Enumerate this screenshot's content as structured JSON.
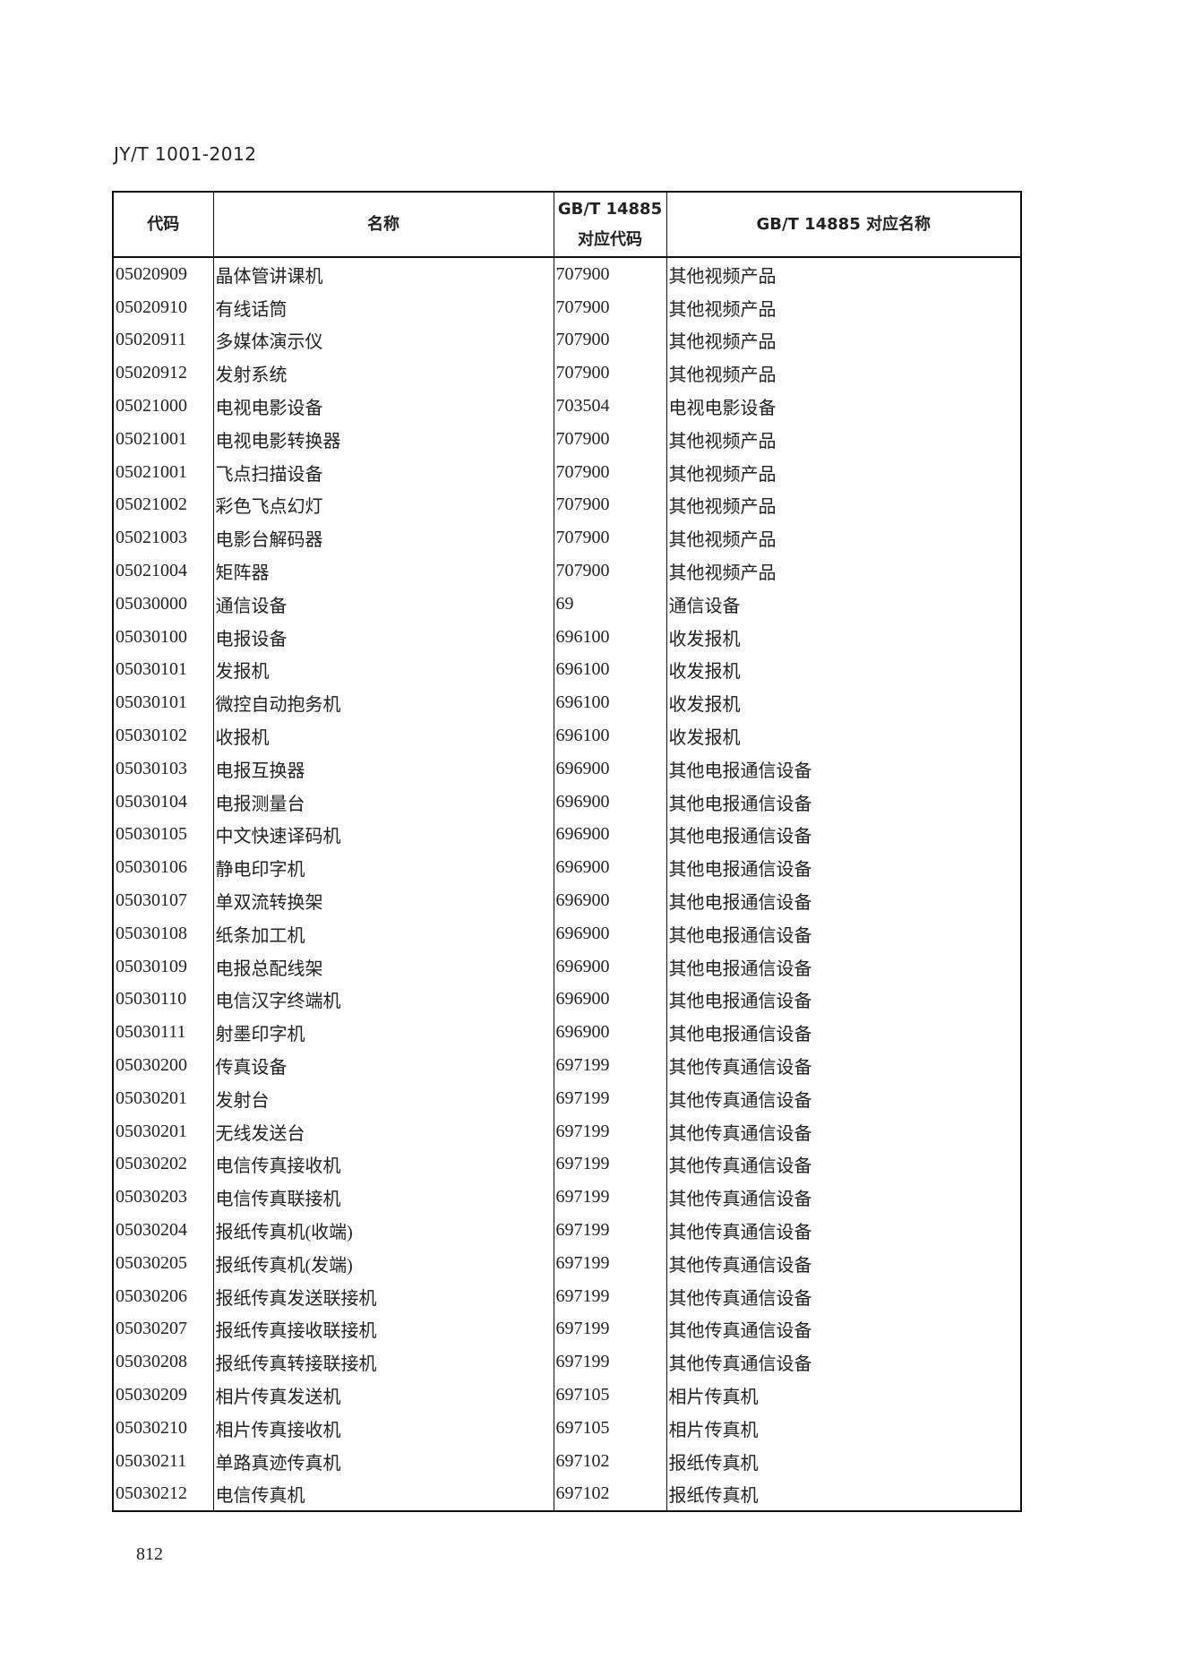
{
  "header": {
    "doc_id": "JY/T 1001-2012"
  },
  "table": {
    "columns": [
      "代码",
      "名称",
      "GB/T 14885\n对应代码",
      "GB/T 14885 对应名称"
    ],
    "column_lines": {
      "c3_line1": "GB/T 14885",
      "c3_line2": "对应代码"
    },
    "rows": [
      [
        "05020909",
        "晶体管讲课机",
        "707900",
        "其他视频产品"
      ],
      [
        "05020910",
        "有线话筒",
        "707900",
        "其他视频产品"
      ],
      [
        "05020911",
        "多媒体演示仪",
        "707900",
        "其他视频产品"
      ],
      [
        "05020912",
        "发射系统",
        "707900",
        "其他视频产品"
      ],
      [
        "05021000",
        "电视电影设备",
        "703504",
        "电视电影设备"
      ],
      [
        "05021001",
        "电视电影转换器",
        "707900",
        "其他视频产品"
      ],
      [
        "05021001",
        "飞点扫描设备",
        "707900",
        "其他视频产品"
      ],
      [
        "05021002",
        "彩色飞点幻灯",
        "707900",
        "其他视频产品"
      ],
      [
        "05021003",
        "电影台解码器",
        "707900",
        "其他视频产品"
      ],
      [
        "05021004",
        "矩阵器",
        "707900",
        "其他视频产品"
      ],
      [
        "05030000",
        "通信设备",
        "69",
        "通信设备"
      ],
      [
        "05030100",
        "电报设备",
        "696100",
        "收发报机"
      ],
      [
        "05030101",
        "发报机",
        "696100",
        "收发报机"
      ],
      [
        "05030101",
        "微控自动抱务机",
        "696100",
        "收发报机"
      ],
      [
        "05030102",
        "收报机",
        "696100",
        "收发报机"
      ],
      [
        "05030103",
        "电报互换器",
        "696900",
        "其他电报通信设备"
      ],
      [
        "05030104",
        "电报测量台",
        "696900",
        "其他电报通信设备"
      ],
      [
        "05030105",
        "中文快速译码机",
        "696900",
        "其他电报通信设备"
      ],
      [
        "05030106",
        "静电印字机",
        "696900",
        "其他电报通信设备"
      ],
      [
        "05030107",
        "单双流转换架",
        "696900",
        "其他电报通信设备"
      ],
      [
        "05030108",
        "纸条加工机",
        "696900",
        "其他电报通信设备"
      ],
      [
        "05030109",
        "电报总配线架",
        "696900",
        "其他电报通信设备"
      ],
      [
        "05030110",
        "电信汉字终端机",
        "696900",
        "其他电报通信设备"
      ],
      [
        "05030111",
        "射墨印字机",
        "696900",
        "其他电报通信设备"
      ],
      [
        "05030200",
        "传真设备",
        "697199",
        "其他传真通信设备"
      ],
      [
        "05030201",
        "发射台",
        "697199",
        "其他传真通信设备"
      ],
      [
        "05030201",
        "无线发送台",
        "697199",
        "其他传真通信设备"
      ],
      [
        "05030202",
        "电信传真接收机",
        "697199",
        "其他传真通信设备"
      ],
      [
        "05030203",
        "电信传真联接机",
        "697199",
        "其他传真通信设备"
      ],
      [
        "05030204",
        "报纸传真机(收端)",
        "697199",
        "其他传真通信设备"
      ],
      [
        "05030205",
        "报纸传真机(发端)",
        "697199",
        "其他传真通信设备"
      ],
      [
        "05030206",
        "报纸传真发送联接机",
        "697199",
        "其他传真通信设备"
      ],
      [
        "05030207",
        "报纸传真接收联接机",
        "697199",
        "其他传真通信设备"
      ],
      [
        "05030208",
        "报纸传真转接联接机",
        "697199",
        "其他传真通信设备"
      ],
      [
        "05030209",
        "相片传真发送机",
        "697105",
        "相片传真机"
      ],
      [
        "05030210",
        "相片传真接收机",
        "697105",
        "相片传真机"
      ],
      [
        "05030211",
        "单路真迹传真机",
        "697102",
        "报纸传真机"
      ],
      [
        "05030212",
        "电信传真机",
        "697102",
        "报纸传真机"
      ]
    ]
  },
  "footer": {
    "page_number": "812"
  }
}
